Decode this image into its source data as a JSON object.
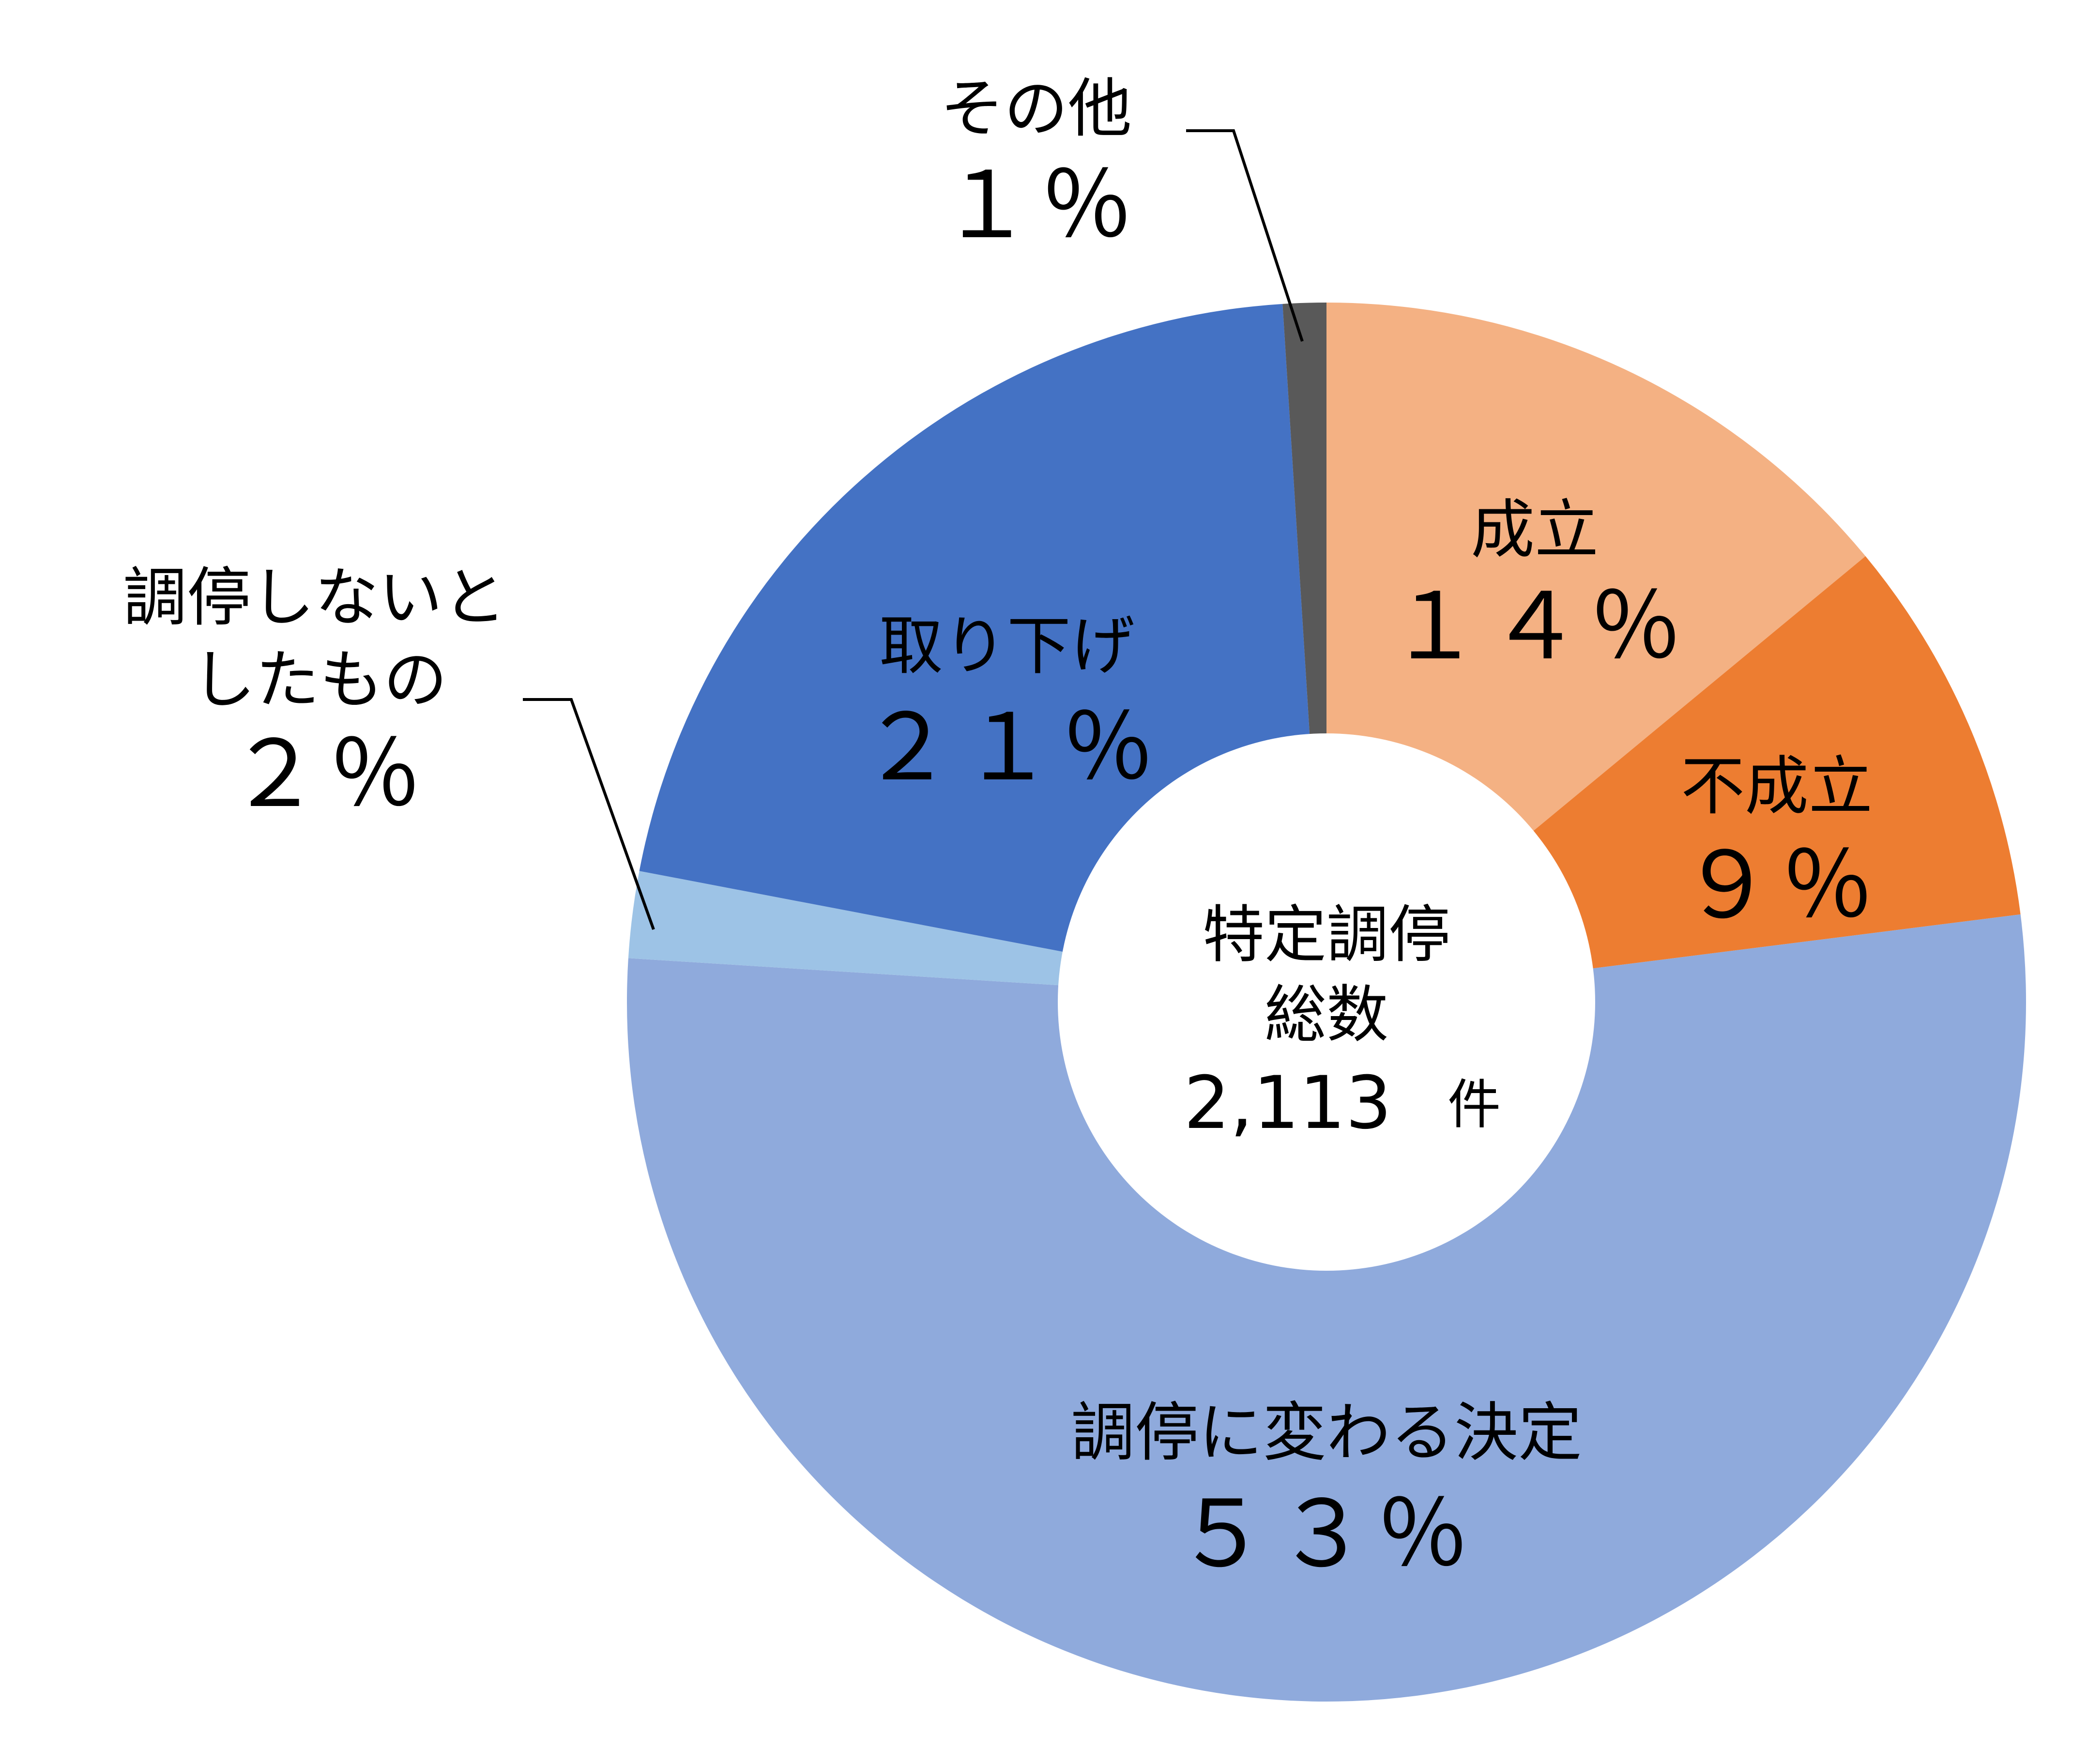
{
  "chart_data": {
    "type": "pie",
    "donut": true,
    "center_label": {
      "line1": "特定調停",
      "line2": "総数",
      "total": "2,113",
      "unit": "件"
    },
    "slices": [
      {
        "name": "成立",
        "value": 14,
        "value_label": "１４％",
        "color": "#F4B183"
      },
      {
        "name": "不成立",
        "value": 9,
        "value_label": "９％",
        "color": "#ED7D31"
      },
      {
        "name": "調停に変わる決定",
        "value": 53,
        "value_label": "５３％",
        "color": "#8FAADC"
      },
      {
        "name_lines": [
          "調停しないと",
          "したもの"
        ],
        "value": 2,
        "value_label": "２％",
        "color": "#9DC3E6"
      },
      {
        "name": "取り下げ",
        "value": 21,
        "value_label": "２１％",
        "color": "#4472C4"
      },
      {
        "name": "その他",
        "value": 1,
        "value_label": "１％",
        "color": "#595959"
      }
    ]
  }
}
